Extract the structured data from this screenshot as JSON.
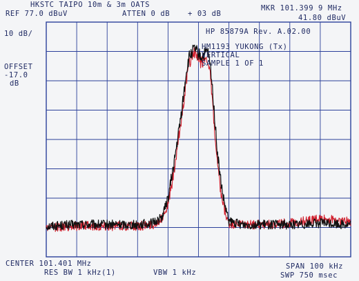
{
  "header": {
    "site": "HKSTC TAIPO 10m & 3m OATS",
    "ref": "REF  77.0 dBuV",
    "atten": "ATTEN 0 dB",
    "marker_offset": "+ 03 dB",
    "marker_freq": "MKR 101.399 9 MHz",
    "marker_level": "41.80 dBuV"
  },
  "left_panel": {
    "scale": "10 dB/",
    "offset_label": "OFFSET",
    "offset_value": "-17.0",
    "offset_unit": "dB"
  },
  "annotations": {
    "instrument": "HP 85879A Rev. A.02.00",
    "device": "HM1193 YUKONG (Tx)",
    "polarization": "VERTICAL",
    "sample": "SAMPLE 1 OF 1"
  },
  "footer": {
    "center": "CENTER 101.401 MHz",
    "res_bw": "RES BW 1 kHz(1)",
    "vbw": "VBW 1 kHz",
    "span": "SPAN 100 kHz",
    "sweep": "SWP 750 msec"
  },
  "colors": {
    "grid": "#2a3f9a",
    "trace_primary": "#111111",
    "trace_secondary": "#d2202e",
    "text": "#1f2a63"
  },
  "chart_data": {
    "type": "line",
    "title": "",
    "xlabel": "",
    "ylabel": "",
    "x_unit": "kHz offset from center",
    "xlim": [
      -50,
      50
    ],
    "ylim_divisions": [
      0,
      8
    ],
    "grid": true,
    "series": [
      {
        "color": "black",
        "x": [
          -50,
          -40,
          -30,
          -20,
          -15,
          -12,
          -10,
          -8,
          -6,
          -5,
          -4,
          -3,
          -2,
          -1,
          0,
          1,
          2,
          3,
          4,
          5,
          6,
          7,
          8,
          9,
          10,
          12,
          15,
          20,
          30,
          40,
          50
        ],
        "y": [
          1.05,
          1.1,
          1.1,
          1.1,
          1.15,
          1.35,
          2.0,
          3.2,
          4.6,
          5.4,
          6.3,
          6.8,
          7.0,
          7.05,
          6.9,
          6.8,
          6.9,
          7.0,
          6.4,
          5.2,
          3.8,
          2.8,
          2.1,
          1.6,
          1.2,
          1.15,
          1.1,
          1.1,
          1.1,
          1.15,
          1.1
        ]
      },
      {
        "color": "red",
        "x": [
          -50,
          -40,
          -30,
          -20,
          -15,
          -12,
          -10,
          -8,
          -6,
          -5,
          -4,
          -3,
          -2,
          -1,
          0,
          1,
          2,
          3,
          4,
          5,
          6,
          7,
          8,
          9,
          10,
          12,
          15,
          20,
          30,
          40,
          50
        ],
        "y": [
          1.0,
          1.05,
          1.05,
          1.05,
          1.1,
          1.3,
          1.8,
          2.9,
          4.4,
          5.2,
          6.0,
          6.6,
          6.9,
          6.95,
          6.7,
          6.6,
          6.75,
          6.8,
          6.0,
          4.7,
          3.3,
          2.4,
          1.8,
          1.4,
          1.1,
          1.1,
          1.1,
          1.1,
          1.15,
          1.3,
          1.2
        ]
      }
    ]
  }
}
